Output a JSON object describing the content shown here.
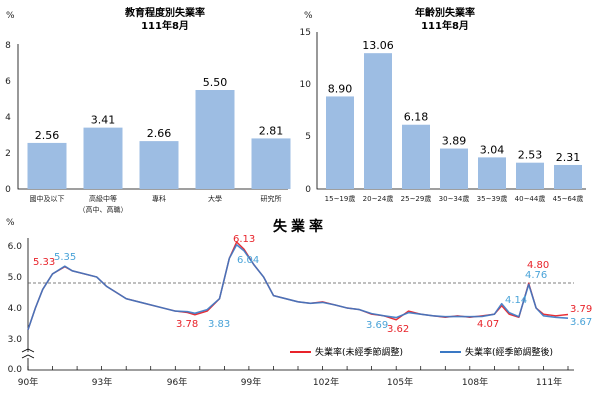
{
  "charts": {
    "education": {
      "title": "教育程度別失業率",
      "subtitle": "111年8月",
      "unit": "%",
      "categories": [
        "國中及以下",
        "高級中等",
        "專科",
        "大學",
        "研究所"
      ],
      "category_sublabel": "（高中、高職）",
      "values": [
        2.56,
        3.41,
        2.66,
        5.5,
        2.81
      ],
      "value_labels": [
        "2.56",
        "3.41",
        "2.66",
        "5.50",
        "2.81"
      ],
      "yticks": [
        "0",
        "2",
        "4",
        "6",
        "8"
      ]
    },
    "age": {
      "title": "年齡別失業率",
      "subtitle": "111年8月",
      "unit": "%",
      "categories": [
        "15~19歲",
        "20~24歲",
        "25~29歲",
        "30~34歲",
        "35~39歲",
        "40~44歲",
        "45~64歲"
      ],
      "values": [
        8.9,
        13.06,
        6.18,
        3.89,
        3.04,
        2.53,
        2.31
      ],
      "value_labels": [
        "8.90",
        "13.06",
        "6.18",
        "3.89",
        "3.04",
        "2.53",
        "2.31"
      ],
      "yticks": [
        "0",
        "5",
        "10",
        "15"
      ]
    },
    "trend": {
      "title": "失業率",
      "unit": "%",
      "yticks": [
        "0.0",
        "3.0",
        "4.0",
        "5.0",
        "6.0"
      ],
      "xticks": [
        "90年",
        "93年",
        "96年",
        "99年",
        "102年",
        "105年",
        "108年",
        "111年"
      ],
      "legend_raw": "失業率(未經季節調整)",
      "legend_sa": "失業率(經季節調整後)",
      "annotations": {
        "raw": [
          "5.33",
          "6.13",
          "3.78",
          "3.62",
          "4.07",
          "4.80",
          "3.79"
        ],
        "sa": [
          "5.35",
          "3.83",
          "6.04",
          "3.69",
          "4.14",
          "4.76",
          "3.67"
        ]
      }
    }
  },
  "chart_data": [
    {
      "type": "bar",
      "title": "教育程度別失業率",
      "subtitle": "111年8月",
      "ylabel": "%",
      "ylim": [
        0,
        8
      ],
      "categories": [
        "國中及以下",
        "高級中等（高中、高職）",
        "專科",
        "大學",
        "研究所"
      ],
      "values": [
        2.56,
        3.41,
        2.66,
        5.5,
        2.81
      ],
      "color": "#9dbde3"
    },
    {
      "type": "bar",
      "title": "年齡別失業率",
      "subtitle": "111年8月",
      "ylabel": "%",
      "ylim": [
        0,
        15
      ],
      "categories": [
        "15~19歲",
        "20~24歲",
        "25~29歲",
        "30~34歲",
        "35~39歲",
        "40~44歲",
        "45~64歲"
      ],
      "values": [
        8.9,
        13.06,
        6.18,
        3.89,
        3.04,
        2.53,
        2.31
      ],
      "color": "#9dbde3"
    },
    {
      "type": "line",
      "title": "失業率",
      "ylabel": "%",
      "ylim": [
        3.0,
        6.5
      ],
      "y_axis_break": true,
      "xlim": [
        90,
        112
      ],
      "reference_line": 4.8,
      "grid": false,
      "legend_position": "bottom-right",
      "series": [
        {
          "name": "失業率(未經季節調整)",
          "color": "#e8232a",
          "points": [
            [
              90,
              3.3
            ],
            [
              90.3,
              4.0
            ],
            [
              90.6,
              4.6
            ],
            [
              91,
              5.1
            ],
            [
              91.5,
              5.33
            ],
            [
              91.8,
              5.2
            ],
            [
              92.3,
              5.1
            ],
            [
              92.8,
              5.0
            ],
            [
              93.2,
              4.7
            ],
            [
              93.6,
              4.5
            ],
            [
              94,
              4.3
            ],
            [
              94.5,
              4.2
            ],
            [
              95,
              4.1
            ],
            [
              95.5,
              4.0
            ],
            [
              96,
              3.9
            ],
            [
              96.5,
              3.85
            ],
            [
              96.8,
              3.78
            ],
            [
              97.3,
              3.9
            ],
            [
              97.8,
              4.3
            ],
            [
              98.2,
              5.6
            ],
            [
              98.5,
              6.13
            ],
            [
              98.8,
              5.9
            ],
            [
              99.2,
              5.4
            ],
            [
              99.6,
              5.0
            ],
            [
              100,
              4.4
            ],
            [
              100.5,
              4.3
            ],
            [
              101,
              4.2
            ],
            [
              101.5,
              4.15
            ],
            [
              102,
              4.2
            ],
            [
              102.5,
              4.1
            ],
            [
              103,
              4.0
            ],
            [
              103.5,
              3.95
            ],
            [
              104,
              3.8
            ],
            [
              104.5,
              3.75
            ],
            [
              105,
              3.62
            ],
            [
              105.5,
              3.9
            ],
            [
              106,
              3.8
            ],
            [
              106.5,
              3.75
            ],
            [
              107,
              3.7
            ],
            [
              107.5,
              3.75
            ],
            [
              108,
              3.7
            ],
            [
              108.5,
              3.75
            ],
            [
              109,
              3.8
            ],
            [
              109.3,
              4.07
            ],
            [
              109.6,
              3.8
            ],
            [
              110,
              3.7
            ],
            [
              110.4,
              4.8
            ],
            [
              110.7,
              4.0
            ],
            [
              111,
              3.8
            ],
            [
              111.5,
              3.75
            ],
            [
              112,
              3.79
            ]
          ]
        },
        {
          "name": "失業率(經季節調整後)",
          "color": "#3a78c4",
          "points": [
            [
              90,
              3.3
            ],
            [
              90.3,
              4.0
            ],
            [
              90.6,
              4.6
            ],
            [
              91,
              5.1
            ],
            [
              91.5,
              5.35
            ],
            [
              91.8,
              5.2
            ],
            [
              92.3,
              5.1
            ],
            [
              92.8,
              5.0
            ],
            [
              93.2,
              4.7
            ],
            [
              93.6,
              4.5
            ],
            [
              94,
              4.3
            ],
            [
              94.5,
              4.2
            ],
            [
              95,
              4.1
            ],
            [
              95.5,
              4.0
            ],
            [
              96,
              3.9
            ],
            [
              96.5,
              3.88
            ],
            [
              96.8,
              3.83
            ],
            [
              97.3,
              3.95
            ],
            [
              97.8,
              4.3
            ],
            [
              98.2,
              5.6
            ],
            [
              98.5,
              6.04
            ],
            [
              98.8,
              5.85
            ],
            [
              99.2,
              5.4
            ],
            [
              99.6,
              5.0
            ],
            [
              100,
              4.4
            ],
            [
              100.5,
              4.3
            ],
            [
              101,
              4.2
            ],
            [
              101.5,
              4.15
            ],
            [
              102,
              4.18
            ],
            [
              102.5,
              4.1
            ],
            [
              103,
              4.0
            ],
            [
              103.5,
              3.95
            ],
            [
              104,
              3.82
            ],
            [
              104.5,
              3.75
            ],
            [
              105,
              3.69
            ],
            [
              105.5,
              3.85
            ],
            [
              106,
              3.8
            ],
            [
              106.5,
              3.75
            ],
            [
              107,
              3.72
            ],
            [
              107.5,
              3.73
            ],
            [
              108,
              3.72
            ],
            [
              108.5,
              3.73
            ],
            [
              109,
              3.8
            ],
            [
              109.3,
              4.14
            ],
            [
              109.6,
              3.85
            ],
            [
              110,
              3.72
            ],
            [
              110.4,
              4.76
            ],
            [
              110.7,
              4.0
            ],
            [
              111,
              3.75
            ],
            [
              111.5,
              3.7
            ],
            [
              112,
              3.67
            ]
          ]
        }
      ]
    }
  ]
}
